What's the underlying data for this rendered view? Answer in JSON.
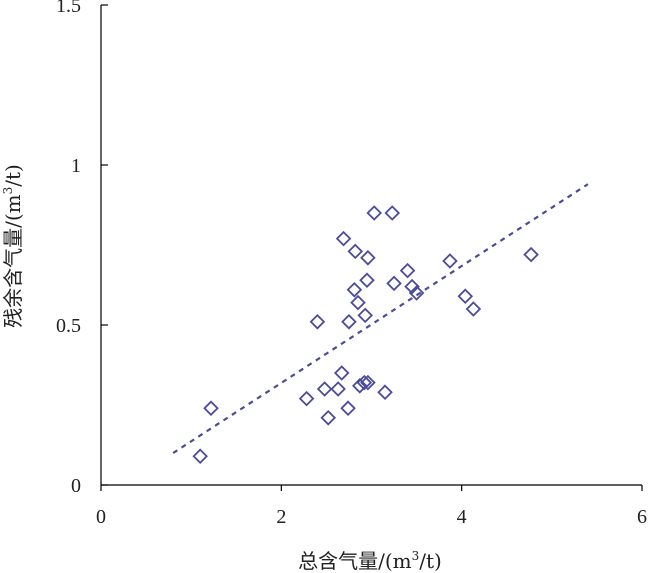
{
  "chart_data": {
    "type": "scatter",
    "xlabel_main": "总含气量/(m",
    "xlabel_sup": "3",
    "xlabel_end": "/t)",
    "ylabel_main": "残余含气量/(m",
    "ylabel_sup": "3",
    "ylabel_end": "/t)",
    "xlim": [
      0,
      6
    ],
    "ylim": [
      0,
      1.5
    ],
    "x_ticks": [
      0,
      2,
      4,
      6
    ],
    "x_tick_labels": [
      "0",
      "2",
      "4",
      "6"
    ],
    "y_ticks": [
      0,
      0.5,
      1,
      1.5
    ],
    "y_tick_labels": [
      "0",
      "0.5",
      "1",
      "1.5"
    ],
    "grid": false,
    "marker": "diamond-open",
    "colors": {
      "marker": "#4b4b9a",
      "trendline": "#4b4b9a",
      "axis": "#000000"
    },
    "points": [
      {
        "x": 1.1,
        "y": 0.09
      },
      {
        "x": 1.22,
        "y": 0.24
      },
      {
        "x": 2.28,
        "y": 0.27
      },
      {
        "x": 2.4,
        "y": 0.51
      },
      {
        "x": 2.48,
        "y": 0.3
      },
      {
        "x": 2.52,
        "y": 0.21
      },
      {
        "x": 2.63,
        "y": 0.3
      },
      {
        "x": 2.67,
        "y": 0.35
      },
      {
        "x": 2.69,
        "y": 0.77
      },
      {
        "x": 2.74,
        "y": 0.24
      },
      {
        "x": 2.75,
        "y": 0.51
      },
      {
        "x": 2.81,
        "y": 0.61
      },
      {
        "x": 2.82,
        "y": 0.73
      },
      {
        "x": 2.85,
        "y": 0.57
      },
      {
        "x": 2.87,
        "y": 0.31
      },
      {
        "x": 2.92,
        "y": 0.32
      },
      {
        "x": 2.93,
        "y": 0.53
      },
      {
        "x": 2.95,
        "y": 0.64
      },
      {
        "x": 2.96,
        "y": 0.32
      },
      {
        "x": 2.96,
        "y": 0.71
      },
      {
        "x": 3.03,
        "y": 0.85
      },
      {
        "x": 3.15,
        "y": 0.29
      },
      {
        "x": 3.23,
        "y": 0.85
      },
      {
        "x": 3.25,
        "y": 0.63
      },
      {
        "x": 3.4,
        "y": 0.67
      },
      {
        "x": 3.45,
        "y": 0.62
      },
      {
        "x": 3.5,
        "y": 0.6
      },
      {
        "x": 3.87,
        "y": 0.7
      },
      {
        "x": 4.04,
        "y": 0.59
      },
      {
        "x": 4.13,
        "y": 0.55
      },
      {
        "x": 4.77,
        "y": 0.72
      }
    ],
    "trendline": {
      "style": "dashed",
      "x": [
        0.8,
        5.4
      ],
      "y": [
        0.1,
        0.94
      ]
    }
  }
}
